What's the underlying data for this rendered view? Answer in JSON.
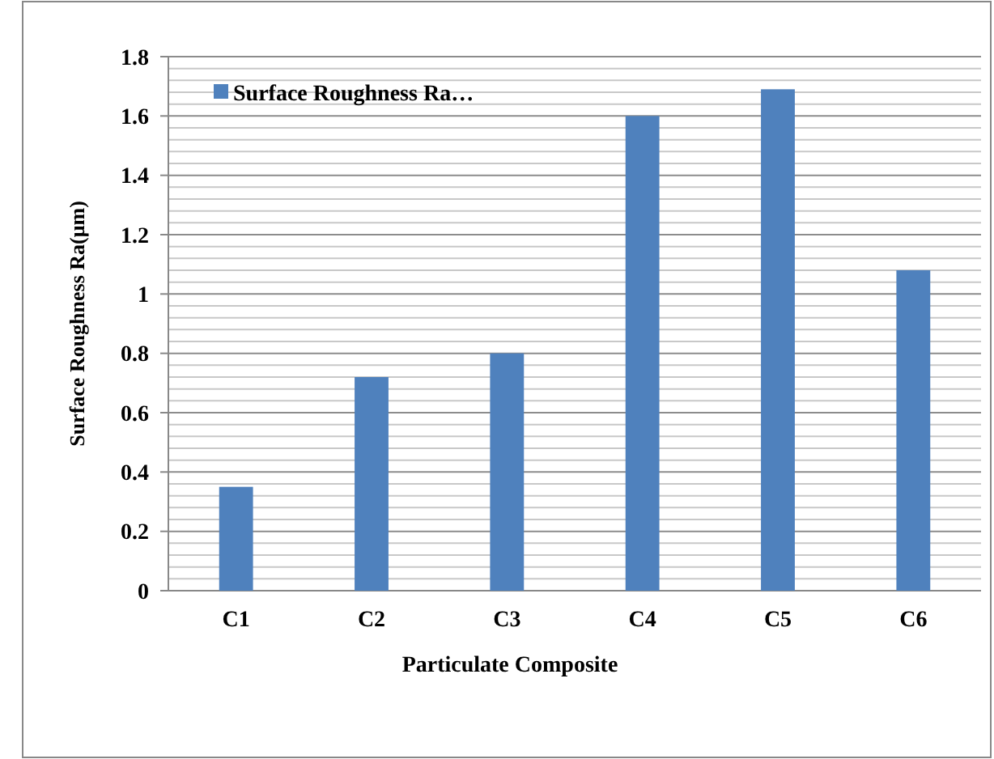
{
  "chart_data": {
    "type": "bar",
    "xlabel": "Particulate Composite",
    "ylabel": "Surface Roughness Ra(μm)",
    "categories": [
      "C1",
      "C2",
      "C3",
      "C4",
      "C5",
      "C6"
    ],
    "series": [
      {
        "name": "Surface Roughness Ra…",
        "color": "#4f81bd",
        "values": [
          0.35,
          0.72,
          0.8,
          1.6,
          1.69,
          1.08
        ]
      }
    ],
    "ylim": [
      0,
      1.8
    ],
    "yticks": [
      0,
      0.2,
      0.4,
      0.6,
      0.8,
      1,
      1.2,
      1.4,
      1.6,
      1.8
    ],
    "grid": "y",
    "legend": "top left"
  }
}
